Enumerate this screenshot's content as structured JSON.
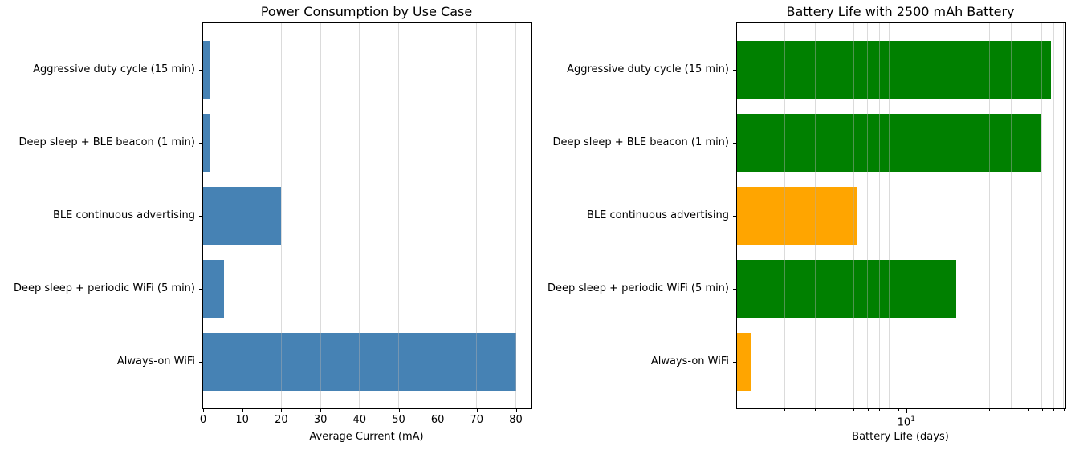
{
  "figure": {
    "background": "#ffffff",
    "description": "Two horizontal bar charts comparing IoT device power use cases"
  },
  "categories_top_to_bottom": [
    "Aggressive duty cycle (15 min)",
    "Deep sleep + BLE beacon (1 min)",
    "BLE continuous advertising",
    "Deep sleep + periodic WiFi (5 min)",
    "Always-on WiFi"
  ],
  "chart_data": [
    {
      "type": "bar",
      "orientation": "horizontal",
      "title": "Power Consumption by Use Case",
      "xlabel": "Average Current (mA)",
      "xscale": "linear",
      "xlim": [
        0,
        84
      ],
      "grid": true,
      "legend_position": "none",
      "categories": [
        "Aggressive duty cycle (15 min)",
        "Deep sleep + BLE beacon (1 min)",
        "BLE continuous advertising",
        "Deep sleep + periodic WiFi (5 min)",
        "Always-on WiFi"
      ],
      "values": [
        1.55,
        1.75,
        20,
        5.4,
        80
      ],
      "bar_colors": [
        "#4682B4",
        "#4682B4",
        "#4682B4",
        "#4682B4",
        "#4682B4"
      ],
      "xticks": {
        "values": [
          0,
          10,
          20,
          30,
          40,
          50,
          60,
          70,
          80
        ],
        "labels": [
          "0",
          "10",
          "20",
          "30",
          "40",
          "50",
          "60",
          "70",
          "80"
        ]
      },
      "gridlines": [
        10,
        20,
        30,
        40,
        50,
        60,
        70,
        80
      ]
    },
    {
      "type": "bar",
      "orientation": "horizontal",
      "title": "Battery Life with 2500 mAh Battery",
      "xlabel": "Battery Life (days)",
      "xscale": "log",
      "xlim": [
        1.07,
        81.8
      ],
      "grid": true,
      "legend_position": "none",
      "categories": [
        "Aggressive duty cycle (15 min)",
        "Deep sleep + BLE beacon (1 min)",
        "BLE continuous advertising",
        "Deep sleep + periodic WiFi (5 min)",
        "Always-on WiFi"
      ],
      "values": [
        67.2,
        59.5,
        5.2,
        19.3,
        1.3
      ],
      "bar_colors": [
        "#008000",
        "#008000",
        "#FFA500",
        "#008000",
        "#FFA500"
      ],
      "xtick_major": {
        "value": 10,
        "base": "10",
        "exponent": "1"
      },
      "xticks_minor": [
        2,
        3,
        4,
        5,
        6,
        7,
        8,
        9,
        20,
        30,
        40,
        50,
        60,
        70,
        80
      ],
      "gridlines": [
        2,
        3,
        4,
        5,
        6,
        7,
        8,
        9,
        10,
        20,
        30,
        40,
        50,
        60,
        70,
        80
      ]
    }
  ],
  "colors": {
    "bar_blue": "#4682B4",
    "bar_green": "#008000",
    "bar_orange": "#FFA500",
    "grid": "#b0b0b0",
    "text": "#000000",
    "spine": "#000000"
  }
}
